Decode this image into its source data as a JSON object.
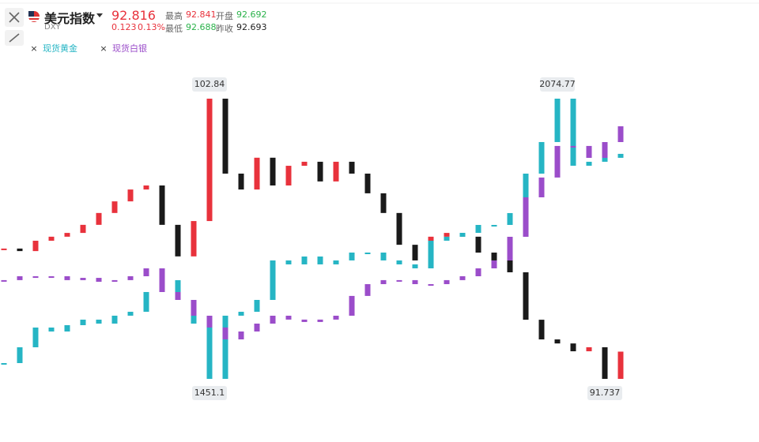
{
  "header": {
    "name": "美元指数",
    "code": "DXY",
    "price": 92.816,
    "change": 0.123,
    "change_pct": "0.13%",
    "stats": [
      {
        "label": "最高",
        "value": 92.841
      },
      {
        "label": "开盘",
        "value": 92.692
      },
      {
        "label": "最低",
        "value": 92.688
      },
      {
        "label": "昨收",
        "value": 92.693
      }
    ]
  },
  "chart_data": {
    "type": "candlestick",
    "series": [
      {
        "name": "美元指数",
        "up_color": "#e8323c",
        "down_color": "#1a1a1a",
        "values": [
          96.9,
          96.8,
          97.21,
          97.37,
          97.52,
          97.84,
          98.31,
          98.77,
          99.24,
          99.4,
          97.84,
          96.59,
          97.99,
          102.84,
          99.87,
          99.24,
          100.5,
          99.4,
          100.18,
          100.34,
          99.56,
          100.34,
          99.87,
          99.09,
          98.31,
          97.05,
          96.43,
          97.37,
          97.52,
          97.37,
          96.74,
          96.43,
          95.96,
          94.08,
          93.3,
          93.14,
          92.83,
          92.99,
          91.737,
          92.816
        ]
      },
      {
        "name": "现货黄金",
        "color": "#26b5c4",
        "values": [
          1486.2,
          1521.4,
          1565.3,
          1556.5,
          1570.6,
          1582.9,
          1574.1,
          1591.7,
          1600.4,
          1644.4,
          1670.7,
          1626.8,
          1574.1,
          1451.1,
          1591.7,
          1600.4,
          1626.8,
          1714.7,
          1705.9,
          1723.4,
          1705.9,
          1714.7,
          1732.2,
          1732.2,
          1714.7,
          1705.9,
          1697.1,
          1758.6,
          1767.4,
          1776.1,
          1793.7,
          1793.7,
          1820.1,
          1907.9,
          1978.2,
          2074.77,
          1925.5,
          1934.3,
          1943.1,
          1951.9
        ]
      },
      {
        "name": "现货白银",
        "color": "#9b4dca",
        "values": [
          16.73,
          17.04,
          16.91,
          17.04,
          16.73,
          16.91,
          16.6,
          16.73,
          17.04,
          17.67,
          15.78,
          15.15,
          13.89,
          12.95,
          12.0,
          12.63,
          13.26,
          13.89,
          13.58,
          13.39,
          13.58,
          13.89,
          15.47,
          16.41,
          16.73,
          16.73,
          16.41,
          16.41,
          16.73,
          17.04,
          17.67,
          18.3,
          20.19,
          23.34,
          24.92,
          27.44,
          27.44,
          26.49,
          27.75,
          29.01
        ]
      }
    ]
  }
}
